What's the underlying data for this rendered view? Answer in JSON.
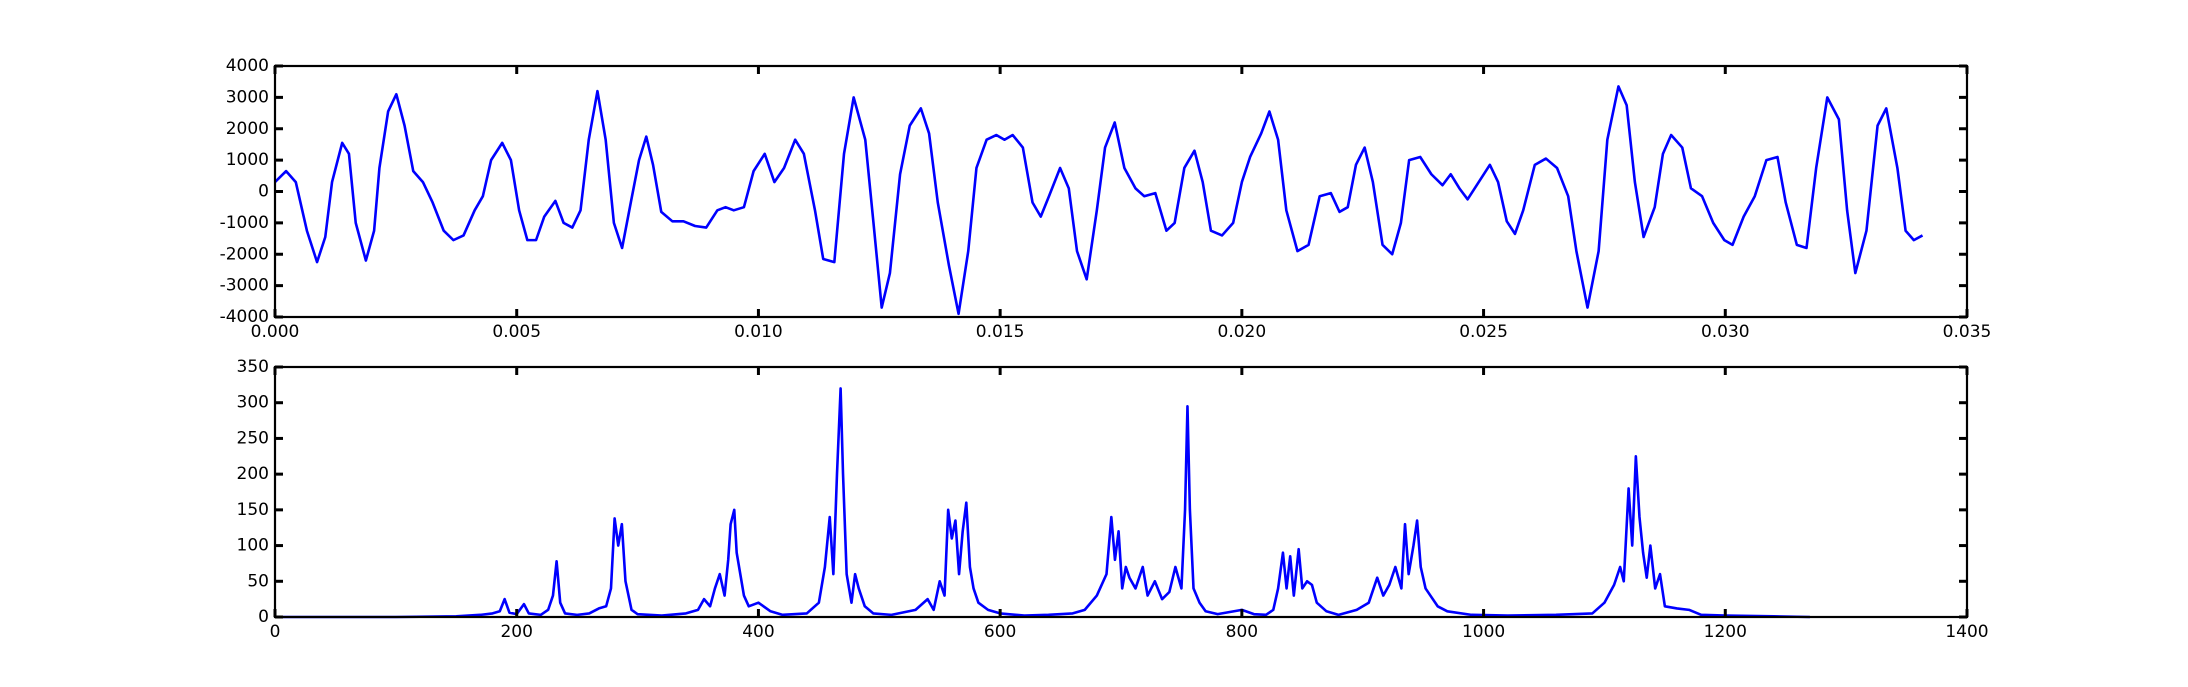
{
  "chart_data": [
    {
      "type": "line",
      "color": "#0000ff",
      "x": [
        0,
        0.00023,
        0.00043,
        0.00066,
        0.00087,
        0.00104,
        0.00118,
        0.00139,
        0.00153,
        0.00167,
        0.00188,
        0.00205,
        0.00216,
        0.00234,
        0.00251,
        0.00268,
        0.00286,
        0.00306,
        0.00326,
        0.00349,
        0.00369,
        0.0039,
        0.00413,
        0.0043,
        0.00447,
        0.0047,
        0.00488,
        0.00505,
        0.00522,
        0.0054,
        0.00557,
        0.0058,
        0.00597,
        0.00615,
        0.00632,
        0.00649,
        0.00667,
        0.00684,
        0.00701,
        0.00718,
        0.00736,
        0.00753,
        0.00768,
        0.00782,
        0.00799,
        0.00822,
        0.00845,
        0.00869,
        0.00892,
        0.00915,
        0.00932,
        0.00949,
        0.0097,
        0.0099,
        0.01013,
        0.01033,
        0.01053,
        0.01076,
        0.01094,
        0.01117,
        0.01134,
        0.01157,
        0.01177,
        0.01197,
        0.01221,
        0.01238,
        0.01255,
        0.01272,
        0.01293,
        0.01313,
        0.01336,
        0.01353,
        0.01371,
        0.01394,
        0.01414,
        0.01434,
        0.01451,
        0.01472,
        0.01492,
        0.01509,
        0.01526,
        0.01547,
        0.01567,
        0.01584,
        0.01601,
        0.01624,
        0.01642,
        0.01659,
        0.01679,
        0.017,
        0.01717,
        0.01737,
        0.01757,
        0.0178,
        0.01798,
        0.01821,
        0.01844,
        0.01861,
        0.01881,
        0.01902,
        0.01919,
        0.01936,
        0.01959,
        0.01982,
        0.02,
        0.02017,
        0.0204,
        0.02057,
        0.02075,
        0.02092,
        0.02115,
        0.02138,
        0.02161,
        0.02184,
        0.02202,
        0.02219,
        0.02236,
        0.02254,
        0.02271,
        0.02291,
        0.02311,
        0.02329,
        0.02346,
        0.02369,
        0.02392,
        0.02415,
        0.02432,
        0.0245,
        0.02467,
        0.0249,
        0.02513,
        0.0253,
        0.02548,
        0.02565,
        0.02582,
        0.02606,
        0.02629,
        0.02652,
        0.02675,
        0.02692,
        0.02715,
        0.02738,
        0.02756,
        0.02779,
        0.02796,
        0.02813,
        0.02831,
        0.02854,
        0.02871,
        0.02888,
        0.02911,
        0.02929,
        0.02952,
        0.02975,
        0.02998,
        0.03015,
        0.03038,
        0.03061,
        0.03085,
        0.03108,
        0.03125,
        0.03148,
        0.03168,
        0.03188,
        0.03211,
        0.03235,
        0.03252,
        0.03269,
        0.03292,
        0.03315,
        0.03333,
        0.03356,
        0.03373,
        0.0339,
        0.03408
      ],
      "values": [
        300,
        650,
        300,
        -1250,
        -2250,
        -1450,
        300,
        1550,
        1200,
        -1000,
        -2200,
        -1250,
        750,
        2550,
        3100,
        2100,
        650,
        300,
        -350,
        -1250,
        -1550,
        -1400,
        -600,
        -150,
        1000,
        1550,
        1000,
        -600,
        -1550,
        -1550,
        -800,
        -300,
        -1000,
        -1150,
        -600,
        1650,
        3200,
        1650,
        -1000,
        -1800,
        -350,
        1000,
        1750,
        850,
        -650,
        -950,
        -950,
        -1100,
        -1150,
        -600,
        -500,
        -600,
        -500,
        650,
        1200,
        300,
        750,
        1650,
        1200,
        -600,
        -2150,
        -2250,
        1200,
        3000,
        1650,
        -1000,
        -3700,
        -2600,
        550,
        2100,
        2650,
        1850,
        -350,
        -2350,
        -3900,
        -1900,
        750,
        1650,
        1800,
        1650,
        1800,
        1400,
        -350,
        -800,
        -150,
        750,
        100,
        -1900,
        -2800,
        -600,
        1400,
        2200,
        750,
        100,
        -150,
        -50,
        -1250,
        -1000,
        750,
        1300,
        300,
        -1250,
        -1400,
        -1000,
        300,
        1100,
        1850,
        2550,
        1650,
        -600,
        -1900,
        -1700,
        -150,
        -50,
        -650,
        -500,
        850,
        1400,
        300,
        -1700,
        -2000,
        -1000,
        1000,
        1100,
        550,
        200,
        550,
        100,
        -250,
        300,
        850,
        300,
        -950,
        -1350,
        -600,
        850,
        1050,
        750,
        -150,
        -1900,
        -3700,
        -1900,
        1650,
        3350,
        2750,
        300,
        -1450,
        -500,
        1200,
        1800,
        1400,
        100,
        -150,
        -1000,
        -1550,
        -1700,
        -800,
        -150,
        1000,
        1100,
        -350,
        -1700,
        -1800,
        750,
        3000,
        2300,
        -600,
        -2600,
        -1250,
        2100,
        2650,
        750,
        -1250,
        -1550,
        -1400
      ],
      "xlim": [
        0,
        0.035
      ],
      "xticks": [
        {
          "value": 0,
          "label": "0.000"
        },
        {
          "value": 0.005,
          "label": "0.005"
        },
        {
          "value": 0.01,
          "label": "0.010"
        },
        {
          "value": 0.015,
          "label": "0.015"
        },
        {
          "value": 0.02,
          "label": "0.020"
        },
        {
          "value": 0.025,
          "label": "0.025"
        },
        {
          "value": 0.03,
          "label": "0.030"
        },
        {
          "value": 0.035,
          "label": "0.035"
        }
      ],
      "ylim": [
        -4000,
        4000
      ],
      "yticks": [
        -4000,
        -3000,
        -2000,
        -1000,
        0,
        1000,
        2000,
        3000,
        4000
      ]
    },
    {
      "type": "line",
      "color": "#0000ff",
      "x": [
        0,
        100,
        150,
        170,
        180,
        186,
        190,
        194,
        200,
        206,
        210,
        220,
        226,
        230,
        233,
        236,
        240,
        250,
        260,
        268,
        274,
        278,
        281,
        284,
        287,
        290,
        295,
        300,
        320,
        340,
        350,
        355,
        360,
        364,
        368,
        372,
        375,
        377,
        380,
        382,
        385,
        388,
        392,
        400,
        410,
        420,
        440,
        450,
        455,
        459,
        462,
        465,
        468,
        470,
        473,
        477,
        480,
        483,
        488,
        495,
        510,
        530,
        540,
        545,
        550,
        554,
        557,
        560,
        563,
        566,
        569,
        572,
        575,
        578,
        582,
        590,
        600,
        620,
        640,
        660,
        670,
        680,
        688,
        692,
        695,
        698,
        701,
        704,
        707,
        712,
        718,
        722,
        728,
        734,
        740,
        745,
        750,
        753,
        755,
        757,
        760,
        765,
        770,
        780,
        800,
        810,
        820,
        826,
        830,
        834,
        837,
        840,
        843,
        847,
        850,
        854,
        858,
        862,
        870,
        880,
        895,
        905,
        912,
        917,
        922,
        927,
        932,
        935,
        938,
        942,
        945,
        948,
        952,
        956,
        962,
        970,
        990,
        1020,
        1060,
        1090,
        1100,
        1108,
        1113,
        1116,
        1120,
        1123,
        1126,
        1129,
        1132,
        1135,
        1138,
        1142,
        1146,
        1150,
        1160,
        1170,
        1180,
        1200,
        1240,
        1270
      ],
      "values": [
        0,
        0,
        1,
        3,
        5,
        8,
        25,
        6,
        4,
        18,
        5,
        3,
        10,
        30,
        78,
        20,
        5,
        3,
        5,
        12,
        15,
        40,
        138,
        100,
        130,
        50,
        10,
        4,
        2,
        5,
        10,
        25,
        15,
        40,
        60,
        30,
        80,
        130,
        150,
        90,
        60,
        30,
        15,
        20,
        8,
        3,
        5,
        20,
        70,
        140,
        60,
        200,
        320,
        200,
        60,
        20,
        60,
        40,
        15,
        5,
        3,
        10,
        25,
        10,
        50,
        30,
        150,
        110,
        135,
        60,
        120,
        160,
        70,
        40,
        20,
        10,
        5,
        2,
        3,
        5,
        10,
        30,
        60,
        140,
        80,
        120,
        40,
        70,
        55,
        40,
        70,
        30,
        50,
        25,
        35,
        70,
        40,
        150,
        295,
        150,
        40,
        20,
        8,
        4,
        10,
        4,
        3,
        10,
        40,
        90,
        40,
        85,
        30,
        95,
        40,
        50,
        45,
        20,
        8,
        3,
        10,
        20,
        55,
        30,
        45,
        70,
        40,
        130,
        60,
        100,
        135,
        70,
        40,
        30,
        15,
        8,
        3,
        2,
        3,
        5,
        20,
        45,
        70,
        50,
        180,
        100,
        225,
        140,
        90,
        55,
        100,
        40,
        60,
        15,
        12,
        10,
        3,
        2,
        1,
        0
      ],
      "xlim": [
        0,
        1400
      ],
      "xticks": [
        0,
        200,
        400,
        600,
        800,
        1000,
        1200,
        1400
      ],
      "ylim": [
        0,
        350
      ],
      "yticks": [
        0,
        50,
        100,
        150,
        200,
        250,
        300,
        350
      ]
    }
  ]
}
